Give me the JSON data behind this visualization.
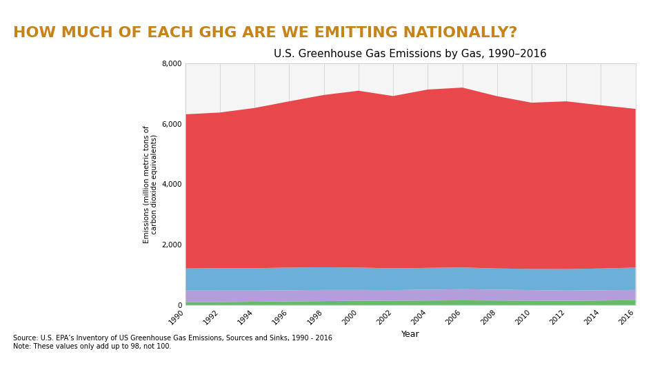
{
  "title": "HOW MUCH OF EACH GHG ARE WE EMITTING NATIONALLY?",
  "chart_title": "U.S. Greenhouse Gas Emissions by Gas, 1990–2016",
  "xlabel": "Year",
  "ylabel": "Emissions (million metric tons of\ncarbon dioxide equivalents)",
  "source_text": "Source: U.S. EPA’s Inventory of US Greenhouse Gas Emissions, Sources and Sinks, 1990 - 2016\nNote: These values only add up to 98, not 100.",
  "years": [
    1990,
    1992,
    1994,
    1996,
    1998,
    2000,
    2002,
    2004,
    2006,
    2008,
    2010,
    2012,
    2014,
    2016
  ],
  "co2": [
    5100,
    5150,
    5300,
    5500,
    5700,
    5850,
    5700,
    5900,
    5950,
    5700,
    5500,
    5550,
    5400,
    5250
  ],
  "methane": [
    730,
    740,
    740,
    750,
    750,
    740,
    720,
    720,
    720,
    700,
    700,
    710,
    720,
    740
  ],
  "nitrous": [
    380,
    380,
    370,
    370,
    370,
    360,
    350,
    360,
    370,
    360,
    350,
    340,
    340,
    340
  ],
  "fluorinated": [
    100,
    100,
    110,
    120,
    130,
    140,
    145,
    150,
    155,
    150,
    145,
    140,
    150,
    160
  ],
  "colors": {
    "co2": "#e8474c",
    "methane": "#6baed6",
    "nitrous": "#b39ddb",
    "fluorinated": "#66bb6a"
  },
  "ylim": [
    0,
    8000
  ],
  "yticks": [
    0,
    2000,
    4000,
    6000,
    8000
  ],
  "background_color": "#ffffff",
  "title_color": "#c8821a",
  "title_fontsize": 16,
  "bottom_bar_color": "#3d6e8a",
  "chart_bg": "#f5f5f5"
}
